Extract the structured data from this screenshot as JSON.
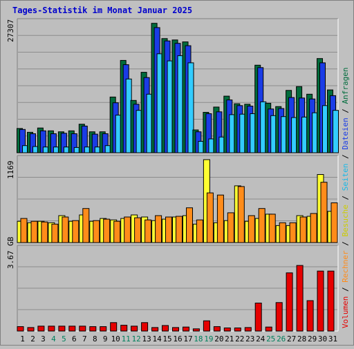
{
  "chart_data": {
    "type": "bar",
    "title": "Tages-Statistik im Monat Januar 2025",
    "categories": [
      "1",
      "2",
      "3",
      "4",
      "5",
      "6",
      "7",
      "8",
      "9",
      "10",
      "11",
      "12",
      "13",
      "14",
      "15",
      "16",
      "17",
      "18",
      "19",
      "20",
      "21",
      "22",
      "23",
      "24",
      "25",
      "26",
      "27",
      "28",
      "29",
      "30",
      "31"
    ],
    "weekend_days": [
      "4",
      "5",
      "11",
      "12",
      "18",
      "19",
      "25",
      "26"
    ],
    "panels": [
      {
        "id": "top",
        "max_label": "27307",
        "ylim": [
          0,
          27307
        ],
        "series": [
          {
            "name": "Anfragen",
            "color": "#006c3c",
            "values": [
              5100,
              4300,
              5200,
              4600,
              4400,
              4600,
              6000,
              4400,
              4400,
              11700,
              19400,
              11000,
              16900,
              27200,
              24000,
              23700,
              23300,
              4800,
              8500,
              9600,
              11900,
              10300,
              10200,
              18400,
              10400,
              9700,
              13100,
              13900,
              12300,
              19800,
              13200
            ]
          },
          {
            "name": "Dateien",
            "color": "#1a3ce6",
            "values": [
              4900,
              4000,
              4600,
              4000,
              4100,
              4000,
              5600,
              3900,
              4000,
              10500,
              18500,
              10200,
              15800,
              26300,
              23500,
              23000,
              22500,
              4400,
              8200,
              8600,
              11100,
              9900,
              9800,
              17900,
              9200,
              9300,
              11600,
              11500,
              11300,
              18900,
              12000
            ]
          },
          {
            "name": "Seiten",
            "color": "#33ccff",
            "values": [
              1500,
              1300,
              1200,
              1200,
              1200,
              1100,
              1200,
              1200,
              1500,
              7900,
              15500,
              8900,
              12300,
              20800,
              19300,
              20400,
              18900,
              2400,
              2900,
              3300,
              8000,
              8100,
              8200,
              10700,
              7800,
              7600,
              7400,
              7500,
              8400,
              9900,
              8900
            ]
          }
        ]
      },
      {
        "id": "mid",
        "max_label": "1169",
        "ylim": [
          0,
          1169
        ],
        "series": [
          {
            "name": "Besuche",
            "color": "#ffff33",
            "values": [
              300,
              280,
              300,
              280,
              380,
              300,
              390,
              300,
              340,
              320,
              340,
              390,
              360,
              310,
              330,
              360,
              380,
              260,
              1169,
              280,
              310,
              800,
              300,
              340,
              400,
              240,
              240,
              380,
              370,
              960,
              440
            ]
          },
          {
            "name": "Rechner",
            "color": "#ff8c1a",
            "values": [
              340,
              300,
              290,
              260,
              360,
              310,
              480,
              310,
              330,
              300,
              360,
              350,
              320,
              380,
              360,
              370,
              490,
              320,
              700,
              670,
              420,
              790,
              380,
              480,
              400,
              280,
              280,
              360,
              410,
              850,
              560
            ]
          }
        ]
      },
      {
        "id": "bot",
        "max_label": "3.67 GB",
        "ylim": [
          0,
          3.67
        ],
        "series": [
          {
            "name": "Volumen",
            "color": "#e60000",
            "values": [
              0.2,
              0.16,
              0.22,
              0.22,
              0.22,
              0.22,
              0.22,
              0.2,
              0.2,
              0.38,
              0.26,
              0.22,
              0.38,
              0.16,
              0.25,
              0.16,
              0.18,
              0.1,
              0.46,
              0.2,
              0.14,
              0.14,
              0.16,
              1.26,
              0.18,
              1.28,
              2.62,
              2.95,
              1.37,
              2.7,
              2.7
            ]
          }
        ]
      }
    ],
    "legend": {
      "placement": "right-vertical",
      "items": [
        {
          "label": "Volumen",
          "color": "#e60000"
        },
        {
          "label": "Rechner",
          "color": "#ff8c1a"
        },
        {
          "label": "Besuche",
          "color": "#cccc00"
        },
        {
          "label": "Seiten",
          "color": "#1ab8e6"
        },
        {
          "label": "Dateien",
          "color": "#1a3ce6"
        },
        {
          "label": "Anfragen",
          "color": "#006c3c"
        }
      ],
      "separator": " / "
    },
    "colors": {
      "title": "#0000cc",
      "background": "#c0c0c0",
      "plot_background": "#bebebe",
      "weekday_label": "#000000",
      "weekend_label": "#00805c",
      "bar_outline": "#000000"
    },
    "grid": true
  }
}
